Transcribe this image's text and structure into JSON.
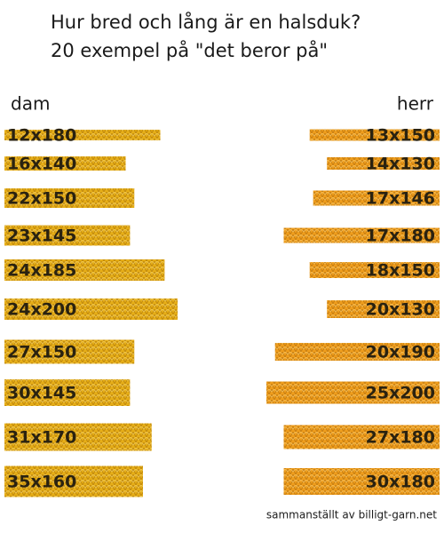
{
  "header": {
    "title_lines": [
      "Hur bred och lång är en halsduk?",
      "20 exempel på \"det beror på\""
    ]
  },
  "groups": [
    {
      "name": "dam",
      "color": "#e6ae17",
      "items": [
        {
          "label": "12x180",
          "width": 12,
          "length": 180
        },
        {
          "label": "16x140",
          "width": 16,
          "length": 140
        },
        {
          "label": "22x150",
          "width": 22,
          "length": 150
        },
        {
          "label": "23x145",
          "width": 23,
          "length": 145
        },
        {
          "label": "24x185",
          "width": 24,
          "length": 185
        },
        {
          "label": "24x200",
          "width": 24,
          "length": 200
        },
        {
          "label": "27x150",
          "width": 27,
          "length": 150
        },
        {
          "label": "30x145",
          "width": 30,
          "length": 145
        },
        {
          "label": "31x170",
          "width": 31,
          "length": 170
        },
        {
          "label": "35x160",
          "width": 35,
          "length": 160
        }
      ]
    },
    {
      "name": "herr",
      "color": "#ef9d1c",
      "items": [
        {
          "label": "13x150",
          "width": 13,
          "length": 150
        },
        {
          "label": "14x130",
          "width": 14,
          "length": 130
        },
        {
          "label": "17x146",
          "width": 17,
          "length": 146
        },
        {
          "label": "17x180",
          "width": 17,
          "length": 180
        },
        {
          "label": "18x150",
          "width": 18,
          "length": 150
        },
        {
          "label": "20x130",
          "width": 20,
          "length": 130
        },
        {
          "label": "20x190",
          "width": 20,
          "length": 190
        },
        {
          "label": "25x200",
          "width": 25,
          "length": 200
        },
        {
          "label": "27x180",
          "width": 27,
          "length": 180
        },
        {
          "label": "30x180",
          "width": 30,
          "length": 180
        }
      ]
    }
  ],
  "footer": "sammanställt av billigt-garn.net"
}
